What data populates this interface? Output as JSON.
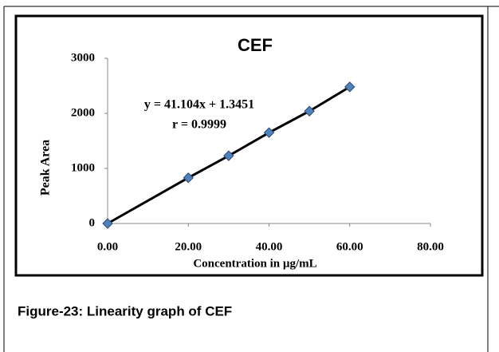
{
  "chart_data": {
    "type": "scatter",
    "title": "CEF",
    "x_label": "Concentration in µg/mL",
    "y_label": "Peak Area",
    "annotations": [
      "y = 41.104x + 1.3451",
      "r = 0.9999"
    ],
    "series": [
      {
        "color": "#4f81bd",
        "x": [
          0,
          20,
          30,
          40,
          50,
          60
        ],
        "values": [
          0,
          830,
          1230,
          1650,
          2040,
          2480
        ]
      }
    ],
    "trendline_color": "#000000",
    "xlim": [
      0,
      80
    ],
    "xticks": [
      {
        "value": 0,
        "label": "0.00"
      },
      {
        "value": 20,
        "label": "20.00"
      },
      {
        "value": 40,
        "label": "40.00"
      },
      {
        "value": 60,
        "label": "60.00"
      },
      {
        "value": 80,
        "label": "80.00"
      }
    ],
    "ylim": [
      0,
      3000
    ],
    "yticks": [
      0,
      1000,
      2000,
      3000
    ],
    "grid": false
  },
  "caption": "Figure-23: Linearity graph of CEF"
}
